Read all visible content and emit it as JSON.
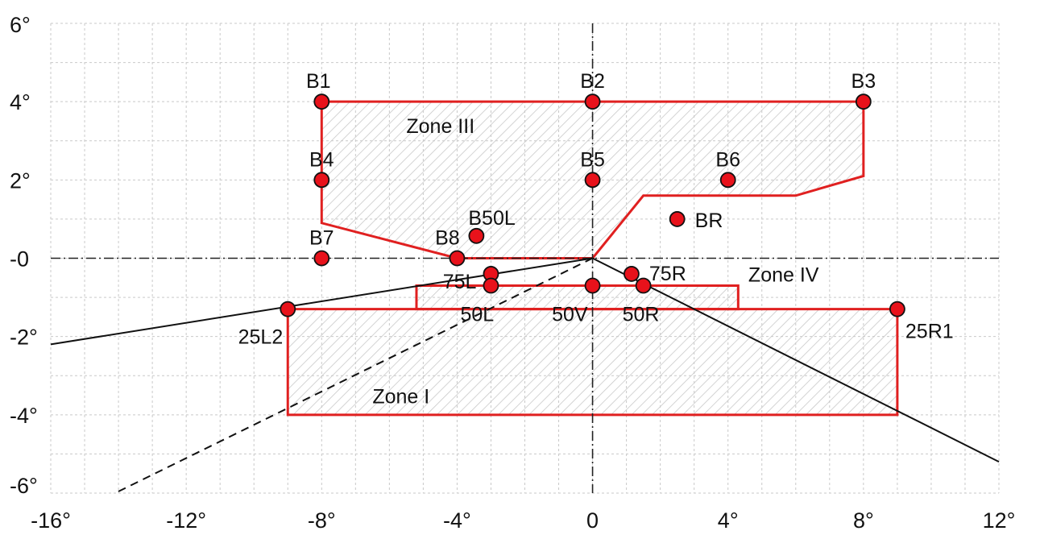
{
  "chart_data": {
    "type": "scatter",
    "title": "",
    "xlabel": "",
    "ylabel": "",
    "xlim": [
      -16,
      12
    ],
    "ylim": [
      -6,
      6
    ],
    "grid": true,
    "x_ticks": [
      "-16°",
      "-12°",
      "-8°",
      "-4°",
      "0",
      "4°",
      "8°",
      "12°"
    ],
    "y_ticks": [
      "6°",
      "4°",
      "2°",
      "-0",
      "-2°",
      "-4°",
      "-6°"
    ],
    "x_tick_values": [
      -16,
      -12,
      -8,
      -4,
      0,
      4,
      8,
      12
    ],
    "y_tick_values": [
      6,
      4,
      2,
      0,
      -2,
      -4,
      -6
    ],
    "colors": {
      "point": "#e8121b",
      "zone_border": "#e02020",
      "hatch": "#c9c9c9",
      "cutoff": "#111111"
    },
    "points": [
      {
        "label": "B1",
        "x": -8.0,
        "y": 4.0
      },
      {
        "label": "B2",
        "x": 0.0,
        "y": 4.0
      },
      {
        "label": "B3",
        "x": 8.0,
        "y": 4.0
      },
      {
        "label": "B4",
        "x": -8.0,
        "y": 2.0
      },
      {
        "label": "B5",
        "x": 0.0,
        "y": 2.0
      },
      {
        "label": "B6",
        "x": 4.0,
        "y": 2.0
      },
      {
        "label": "B7",
        "x": -8.0,
        "y": 0.0
      },
      {
        "label": "B8",
        "x": -4.0,
        "y": 0.0
      },
      {
        "label": "B50L",
        "x": -3.43,
        "y": 0.57
      },
      {
        "label": "BR",
        "x": 2.5,
        "y": 1.0
      },
      {
        "label": "75L",
        "x": -3.0,
        "y": -0.4
      },
      {
        "label": "75R",
        "x": 1.15,
        "y": -0.4
      },
      {
        "label": "50L",
        "x": -3.0,
        "y": -0.7
      },
      {
        "label": "50V",
        "x": 0.0,
        "y": -0.7
      },
      {
        "label": "50R",
        "x": 1.5,
        "y": -0.7
      },
      {
        "label": "25L2",
        "x": -9.0,
        "y": -1.3
      },
      {
        "label": "25R1",
        "x": 9.0,
        "y": -1.3
      }
    ],
    "zones": [
      {
        "label": "Zone III",
        "polygon": [
          [
            -8,
            4
          ],
          [
            8,
            4
          ],
          [
            8,
            2.1
          ],
          [
            6,
            1.6
          ],
          [
            1.5,
            1.6
          ],
          [
            0,
            0
          ],
          [
            -4,
            0
          ],
          [
            -8,
            0.9
          ]
        ]
      },
      {
        "label": "Zone IV",
        "polygon": [
          [
            -5.2,
            -0.7
          ],
          [
            4.3,
            -0.7
          ],
          [
            4.3,
            -1.3
          ],
          [
            -5.2,
            -1.3
          ]
        ]
      },
      {
        "label": "Zone I",
        "polygon": [
          [
            -9,
            -1.3
          ],
          [
            9,
            -1.3
          ],
          [
            9,
            -4
          ],
          [
            -9,
            -4
          ]
        ]
      }
    ],
    "cutoff_lines": [
      {
        "style": "solid",
        "points": [
          [
            -16,
            -2.2
          ],
          [
            0,
            0
          ]
        ]
      },
      {
        "style": "solid",
        "points": [
          [
            0,
            0
          ],
          [
            12,
            -5.2
          ]
        ]
      },
      {
        "style": "dashed",
        "points": [
          [
            0,
            0
          ],
          [
            -14.1,
            -6
          ]
        ]
      }
    ]
  }
}
